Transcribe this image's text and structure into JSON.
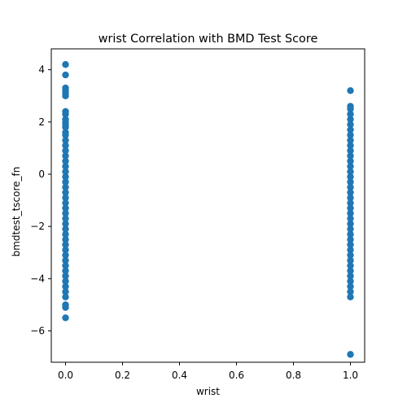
{
  "chart_data": {
    "type": "scatter",
    "title": "wrist Correlation with BMD Test Score",
    "xlabel": "wrist",
    "ylabel": "bmdtest_tscore_fn",
    "xlim": [
      -0.05,
      1.05
    ],
    "ylim": [
      -7.2,
      4.8
    ],
    "x_ticks": [
      0.0,
      0.2,
      0.4,
      0.6,
      0.8,
      1.0
    ],
    "x_tick_labels": [
      "0.0",
      "0.2",
      "0.4",
      "0.6",
      "0.8",
      "1.0"
    ],
    "y_ticks": [
      -6,
      -4,
      -2,
      0,
      2,
      4
    ],
    "y_tick_labels": [
      "−6",
      "−4",
      "−2",
      "0",
      "2",
      "4"
    ],
    "grid": false,
    "marker_color": "#1f77b4",
    "series": [
      {
        "x_value": 0,
        "y_values": [
          4.2,
          3.8,
          3.3,
          3.2,
          3.1,
          3.0,
          2.4,
          2.3,
          2.1,
          2.0,
          1.9,
          1.8,
          1.6,
          1.5,
          1.3,
          1.1,
          0.9,
          0.7,
          0.5,
          0.3,
          0.1,
          -0.1,
          -0.3,
          -0.5,
          -0.7,
          -0.9,
          -1.1,
          -1.3,
          -1.5,
          -1.7,
          -1.9,
          -2.1,
          -2.3,
          -2.5,
          -2.7,
          -2.9,
          -3.1,
          -3.3,
          -3.5,
          -3.7,
          -3.9,
          -4.1,
          -4.3,
          -4.5,
          -4.7,
          -5.0,
          -5.1,
          -5.5
        ]
      },
      {
        "x_value": 1,
        "y_values": [
          3.2,
          2.6,
          2.5,
          2.3,
          2.1,
          1.9,
          1.7,
          1.5,
          1.3,
          1.1,
          0.9,
          0.7,
          0.5,
          0.3,
          0.1,
          -0.1,
          -0.3,
          -0.5,
          -0.7,
          -0.9,
          -1.1,
          -1.3,
          -1.5,
          -1.7,
          -1.9,
          -2.1,
          -2.3,
          -2.5,
          -2.7,
          -2.9,
          -3.1,
          -3.3,
          -3.5,
          -3.7,
          -3.9,
          -4.1,
          -4.3,
          -4.5,
          -4.7,
          -6.9
        ]
      }
    ]
  }
}
